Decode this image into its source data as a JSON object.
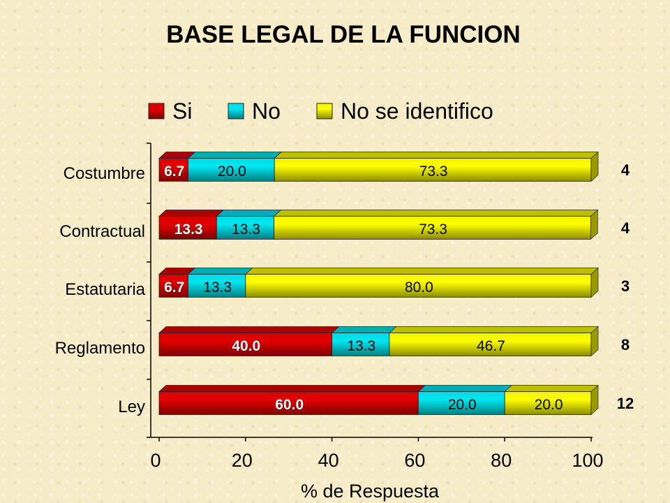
{
  "title": "BASE LEGAL DE LA FUNCION",
  "colors": {
    "si": "#e30000",
    "no": "#00e6f0",
    "nsi": "#ffff00"
  },
  "chart_data": {
    "type": "bar",
    "orientation": "horizontal",
    "stacked": true,
    "categories": [
      "Costumbre",
      "Contractual",
      "Estatutaria",
      "Reglamento",
      "Ley"
    ],
    "series": [
      {
        "name": "Si",
        "values": [
          6.7,
          13.3,
          6.7,
          40.0,
          60.0
        ]
      },
      {
        "name": "No",
        "values": [
          20.0,
          13.3,
          13.3,
          13.3,
          20.0
        ]
      },
      {
        "name": "No se identifico",
        "values": [
          73.3,
          73.3,
          80.0,
          46.7,
          20.0
        ]
      }
    ],
    "value_labels": [
      [
        "6.7",
        "20.0",
        "73.3"
      ],
      [
        "13.3",
        "13.3",
        "73.3"
      ],
      [
        "6.7",
        "13.3",
        "80.0"
      ],
      [
        "40.0",
        "13.3",
        "46.7"
      ],
      [
        "60.0",
        "20.0",
        "20.0"
      ]
    ],
    "counts": [
      "4",
      "4",
      "3",
      "8",
      "12"
    ],
    "xlabel": "%  de Respuesta",
    "ylabel": "",
    "xlim": [
      0,
      100
    ],
    "xticks": [
      "0",
      "20",
      "40",
      "60",
      "80",
      "100"
    ],
    "legend_position": "top",
    "grid": false
  }
}
